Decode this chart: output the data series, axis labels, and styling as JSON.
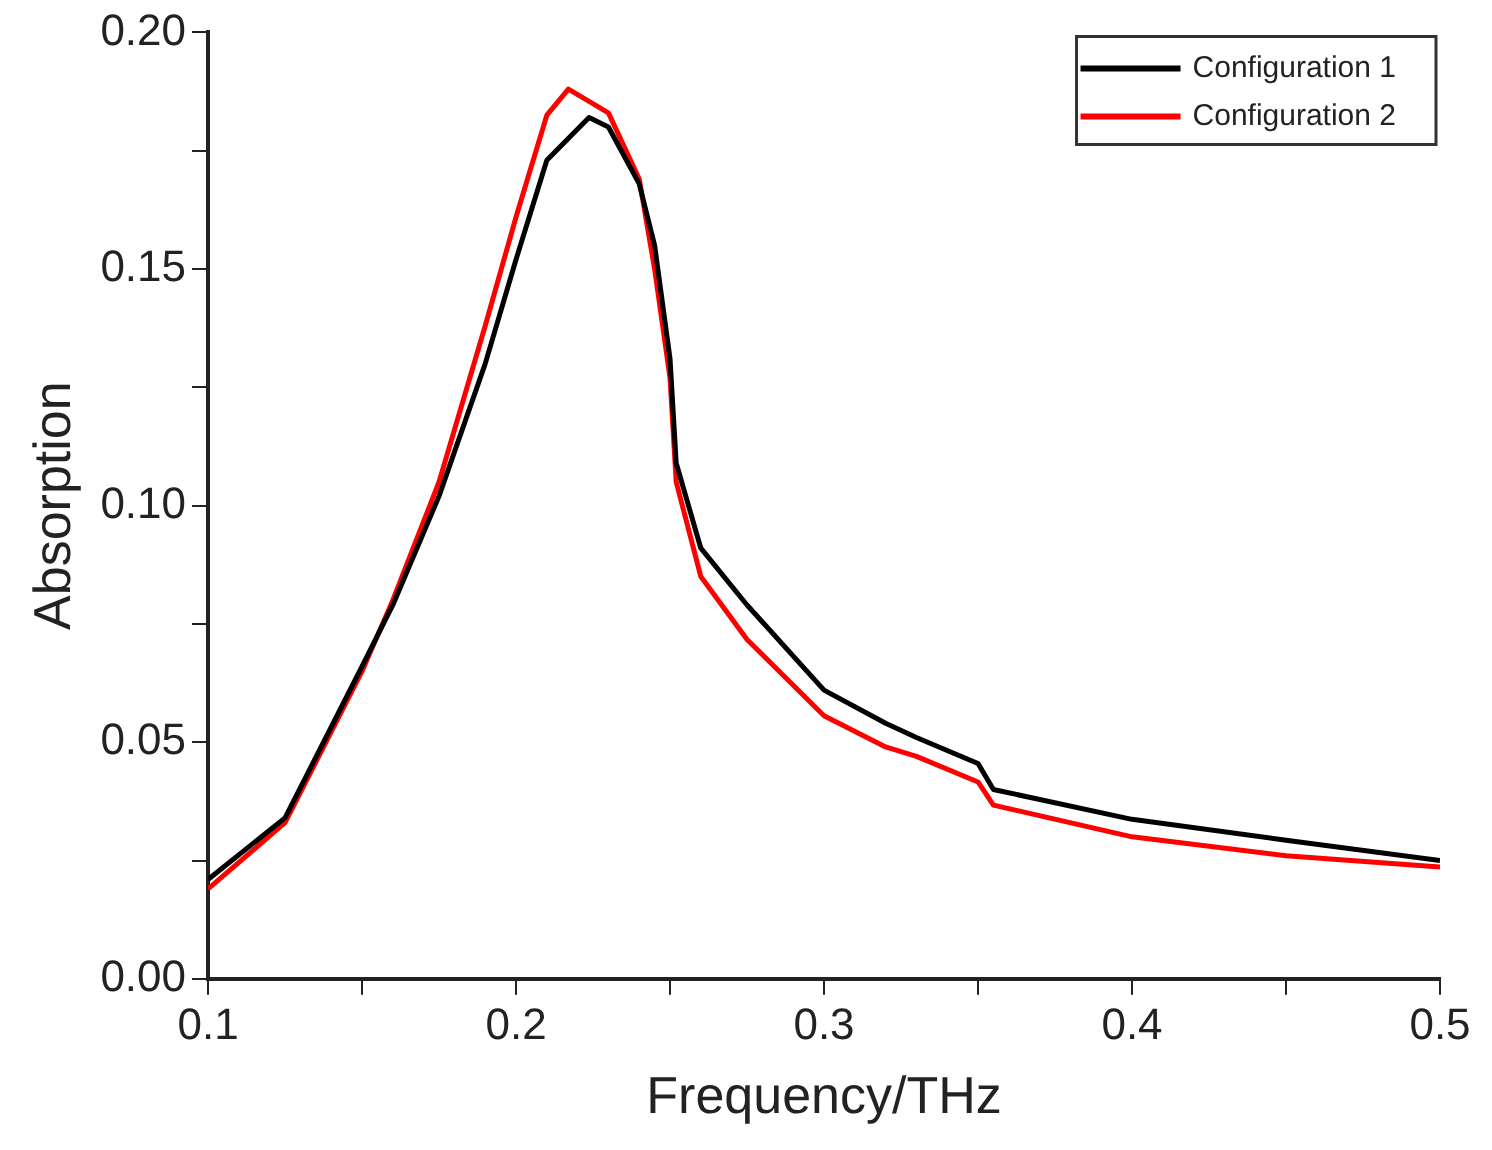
{
  "chart_data": {
    "type": "line",
    "xlabel": "Frequency/THz",
    "ylabel": "Absorption",
    "xlim": [
      0.1,
      0.5
    ],
    "ylim": [
      0,
      0.2
    ],
    "xticks": [
      0.1,
      {
        "value": 0.15,
        "label": null
      },
      0.2,
      {
        "value": 0.25,
        "label": null
      },
      0.3,
      {
        "value": 0.35,
        "label": null
      },
      0.4,
      {
        "value": 0.45,
        "label": null
      },
      0.5
    ],
    "yticks": [
      {
        "value": 0,
        "label": "0.00"
      },
      {
        "value": 0.025,
        "label": null
      },
      {
        "value": 0.05,
        "label": "0.05"
      },
      {
        "value": 0.075,
        "label": null
      },
      {
        "value": 0.1,
        "label": "0.10"
      },
      {
        "value": 0.125,
        "label": null
      },
      {
        "value": 0.15,
        "label": "0.15"
      },
      {
        "value": 0.175,
        "label": null
      },
      {
        "value": 0.2,
        "label": "0.20"
      }
    ],
    "grid": false,
    "legend": "top right",
    "marker": "none",
    "line_style": "solid",
    "series": [
      {
        "name": "Configuration 1",
        "color": "#000000",
        "x": [
          0.1,
          0.125,
          0.15,
          0.16,
          0.175,
          0.19,
          0.2,
          0.21,
          0.2237,
          0.23,
          0.24,
          0.245,
          0.25,
          0.252,
          0.26,
          0.275,
          0.3,
          0.32,
          0.33,
          0.35,
          0.355,
          0.4,
          0.45,
          0.5
        ],
        "values": [
          0.021,
          0.034,
          0.066,
          0.079,
          0.102,
          0.13,
          0.152,
          0.173,
          0.182,
          0.18,
          0.168,
          0.155,
          0.131,
          0.109,
          0.091,
          0.079,
          0.061,
          0.054,
          0.051,
          0.0455,
          0.04,
          0.0337,
          0.0293,
          0.025
        ]
      },
      {
        "name": "Configuration 2",
        "color": "#ff0000",
        "x": [
          0.1,
          0.125,
          0.15,
          0.16,
          0.175,
          0.19,
          0.2,
          0.21,
          0.217,
          0.23,
          0.24,
          0.245,
          0.25,
          0.252,
          0.26,
          0.275,
          0.3,
          0.32,
          0.33,
          0.35,
          0.355,
          0.4,
          0.45,
          0.5
        ],
        "values": [
          0.019,
          0.033,
          0.065,
          0.08,
          0.105,
          0.138,
          0.161,
          0.1825,
          0.188,
          0.183,
          0.169,
          0.15,
          0.127,
          0.105,
          0.085,
          0.0717,
          0.0556,
          0.049,
          0.047,
          0.0416,
          0.0367,
          0.03,
          0.026,
          0.0236
        ]
      }
    ]
  }
}
